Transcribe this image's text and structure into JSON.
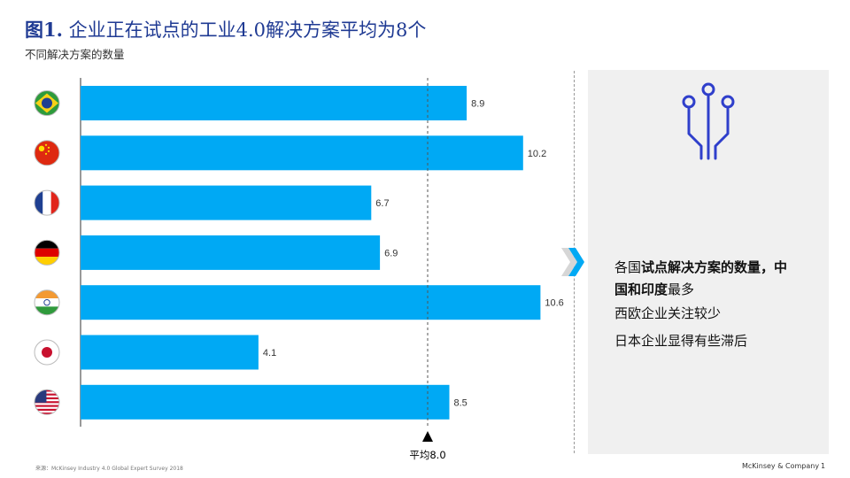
{
  "title": {
    "prefix": "图1.",
    "text": "企业正在试点的工业4.0解决方案平均为8个"
  },
  "subtitle": "不同解决方案的数量",
  "chart_data": {
    "type": "bar",
    "orientation": "horizontal",
    "title": "企业正在试点的工业4.0解决方案平均为8个",
    "subtitle": "不同解决方案的数量",
    "categories": [
      "Brazil",
      "China",
      "France",
      "Germany",
      "India",
      "Japan",
      "USA"
    ],
    "category_icons": [
      "brazil-flag",
      "china-flag",
      "france-flag",
      "germany-flag",
      "india-flag",
      "japan-flag",
      "usa-flag"
    ],
    "values": [
      8.9,
      10.2,
      6.7,
      6.9,
      10.6,
      4.1,
      8.5
    ],
    "value_labels": [
      "8.9",
      "10.2",
      "6.7",
      "6.9",
      "10.6",
      "4.1",
      "8.5"
    ],
    "xlim": [
      0,
      11.1
    ],
    "bar_color": "#00a9f4",
    "reference_line": {
      "value": 8.0,
      "label": "平均8.0",
      "style": "dashed"
    },
    "grid": false,
    "legend": "none"
  },
  "insight_panel": {
    "icon": "circuit-icon",
    "chevron_icon": "chevron-right-icon",
    "accent_color": "#2f3fcb",
    "chevron_color": "#00a9f4",
    "message1_pre": "各国",
    "message1_bold": "试点解决方案的数量，中国和印度",
    "message1_post": "最多",
    "message2": "西欧企业关注较少",
    "message3": "日本企业显得有些滞后"
  },
  "footer": {
    "source": "来源：McKinsey Industry 4.0 Global Expert Survey 2018",
    "brand": "McKinsey & Company",
    "page": "1"
  }
}
